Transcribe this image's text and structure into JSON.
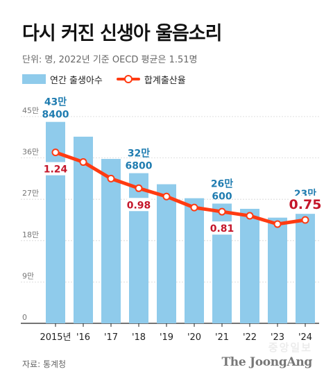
{
  "title": "다시 커진 신생아 울음소리",
  "subtitle": "단위: 명, 2022년 기준 OECD 평균은 1.51명",
  "legend": {
    "births": "연간 출생아수",
    "rate": "합계출산율"
  },
  "source": "자료: 통계청",
  "brand": "The JoongAng",
  "watermark": "중앙일보",
  "colors": {
    "bar": "#8fcbeb",
    "line": "#ff3b12",
    "bar_label": "#1f7cb0",
    "rate_label": "#c4162a",
    "grid": "#d5d5d5"
  },
  "chart_data": {
    "type": "bar",
    "categories": [
      "2015년",
      "'16",
      "'17",
      "'18",
      "'19",
      "'20",
      "'21",
      "'22",
      "'23",
      "'24"
    ],
    "series": [
      {
        "name": "연간 출생아수",
        "type": "bar",
        "values": [
          438400,
          406200,
          357800,
          326800,
          302700,
          272300,
          260600,
          249200,
          230000,
          238300
        ]
      },
      {
        "name": "합계출산율",
        "type": "line",
        "values": [
          1.24,
          1.17,
          1.05,
          0.98,
          0.92,
          0.84,
          0.81,
          0.78,
          0.72,
          0.75
        ]
      }
    ],
    "y_ticks": [
      "0",
      "9만",
      "18만",
      "27만",
      "36만",
      "45만"
    ],
    "ylim": [
      0,
      450000
    ],
    "rate_axis": [
      0,
      1.5
    ],
    "bar_labels": [
      {
        "index": 0,
        "line1": "43만",
        "line2": "8400"
      },
      {
        "index": 3,
        "line1": "32만",
        "line2": "6800"
      },
      {
        "index": 6,
        "line1": "26만",
        "line2": "600"
      },
      {
        "index": 9,
        "line1": "23만",
        "line2": "8300"
      }
    ],
    "rate_labels": [
      {
        "index": 0,
        "text": "1.24"
      },
      {
        "index": 3,
        "text": "0.98"
      },
      {
        "index": 6,
        "text": "0.81"
      },
      {
        "index": 9,
        "text": "0.75"
      }
    ]
  }
}
